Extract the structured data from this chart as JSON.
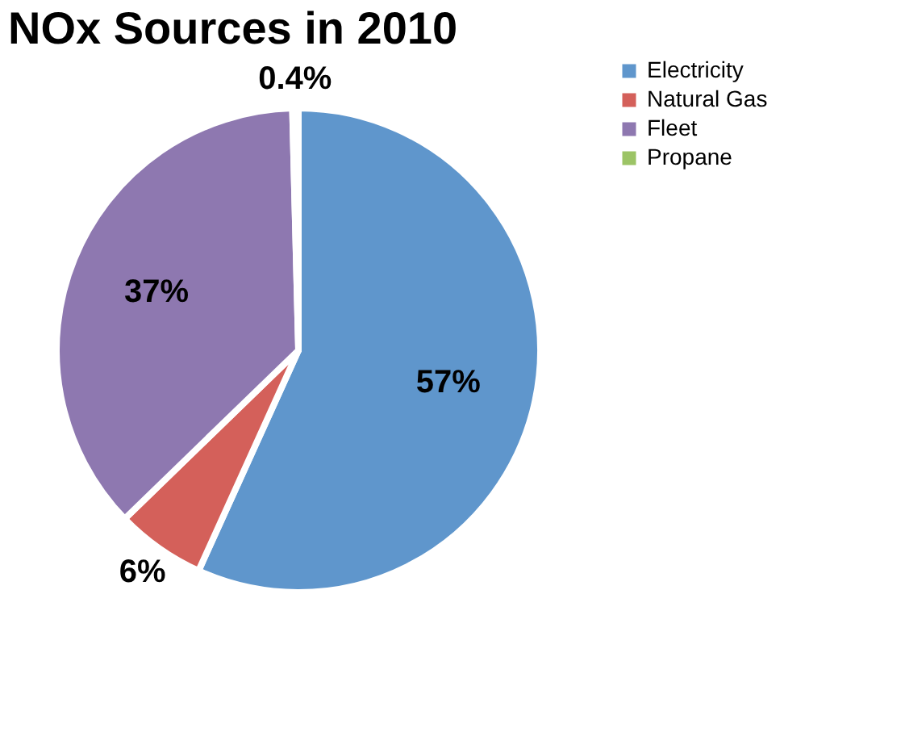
{
  "chart_data": {
    "type": "pie",
    "title": "NOx Sources in 2010",
    "categories": [
      "Electricity",
      "Natural Gas",
      "Fleet",
      "Propane"
    ],
    "values": [
      57,
      6,
      37,
      0.4
    ],
    "value_labels": [
      "57%",
      "6%",
      "37%",
      "0.4%"
    ],
    "colors": [
      "#5f96cc",
      "#d4605a",
      "#8e78b0",
      "#9cc466"
    ],
    "legend": "right"
  }
}
